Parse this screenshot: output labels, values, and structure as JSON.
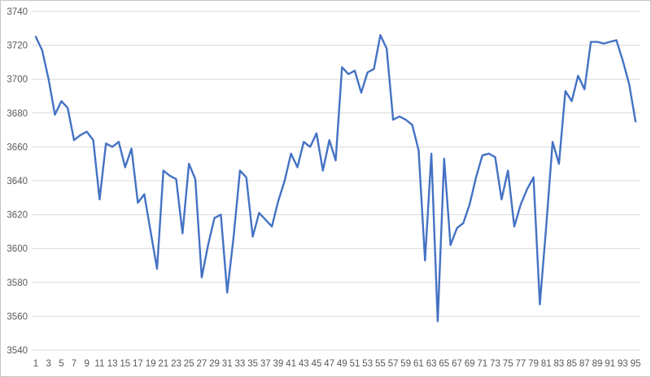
{
  "chart_data": {
    "type": "line",
    "title": "",
    "xlabel": "",
    "ylabel": "",
    "legend": false,
    "grid": true,
    "x": [
      1,
      2,
      3,
      4,
      5,
      6,
      7,
      8,
      9,
      10,
      11,
      12,
      13,
      14,
      15,
      16,
      17,
      18,
      19,
      20,
      21,
      22,
      23,
      24,
      25,
      26,
      27,
      28,
      29,
      30,
      31,
      32,
      33,
      34,
      35,
      36,
      37,
      38,
      39,
      40,
      41,
      42,
      43,
      44,
      45,
      46,
      47,
      48,
      49,
      50,
      51,
      52,
      53,
      54,
      55,
      56,
      57,
      58,
      59,
      60,
      61,
      62,
      63,
      64,
      65,
      66,
      67,
      68,
      69,
      70,
      71,
      72,
      73,
      74,
      75,
      76,
      77,
      78,
      79,
      80,
      81,
      82,
      83,
      84,
      85,
      86,
      87,
      88,
      89,
      90,
      91,
      92,
      93,
      94,
      95
    ],
    "values": [
      3725,
      3717,
      3700,
      3679,
      3687,
      3683,
      3664,
      3667,
      3669,
      3664,
      3629,
      3662,
      3660,
      3663,
      3648,
      3659,
      3627,
      3632,
      3610,
      3588,
      3646,
      3643,
      3641,
      3609,
      3650,
      3641,
      3583,
      3602,
      3618,
      3620,
      3574,
      3607,
      3646,
      3642,
      3607,
      3621,
      3617,
      3613,
      3628,
      3640,
      3656,
      3648,
      3663,
      3660,
      3668,
      3646,
      3664,
      3652,
      3707,
      3703,
      3705,
      3692,
      3704,
      3706,
      3726,
      3718,
      3676,
      3678,
      3676,
      3673,
      3658,
      3593,
      3656,
      3557,
      3653,
      3602,
      3612,
      3615,
      3626,
      3642,
      3655,
      3656,
      3654,
      3629,
      3646,
      3613,
      3626,
      3635,
      3642,
      3567,
      3613,
      3663,
      3650,
      3693,
      3687,
      3702,
      3694,
      3722,
      3722,
      3721,
      3722,
      3723,
      3711,
      3697,
      3675
    ],
    "x_tick_labels": [
      "1",
      "3",
      "5",
      "7",
      "9",
      "11",
      "13",
      "15",
      "17",
      "19",
      "21",
      "23",
      "25",
      "27",
      "29",
      "31",
      "33",
      "35",
      "37",
      "39",
      "41",
      "43",
      "45",
      "47",
      "49",
      "51",
      "53",
      "55",
      "57",
      "59",
      "61",
      "63",
      "65",
      "67",
      "69",
      "71",
      "73",
      "75",
      "77",
      "79",
      "81",
      "83",
      "85",
      "87",
      "89",
      "91",
      "93",
      "95"
    ],
    "y_ticks": [
      3540,
      3560,
      3580,
      3600,
      3620,
      3640,
      3660,
      3680,
      3700,
      3720,
      3740
    ],
    "ylim": [
      3540,
      3740
    ],
    "line_color": "#4472C4",
    "gridline_color": "#D9D9D9",
    "tick_label_color": "#595959",
    "background": "#FFFFFF",
    "legend_position": "none"
  }
}
